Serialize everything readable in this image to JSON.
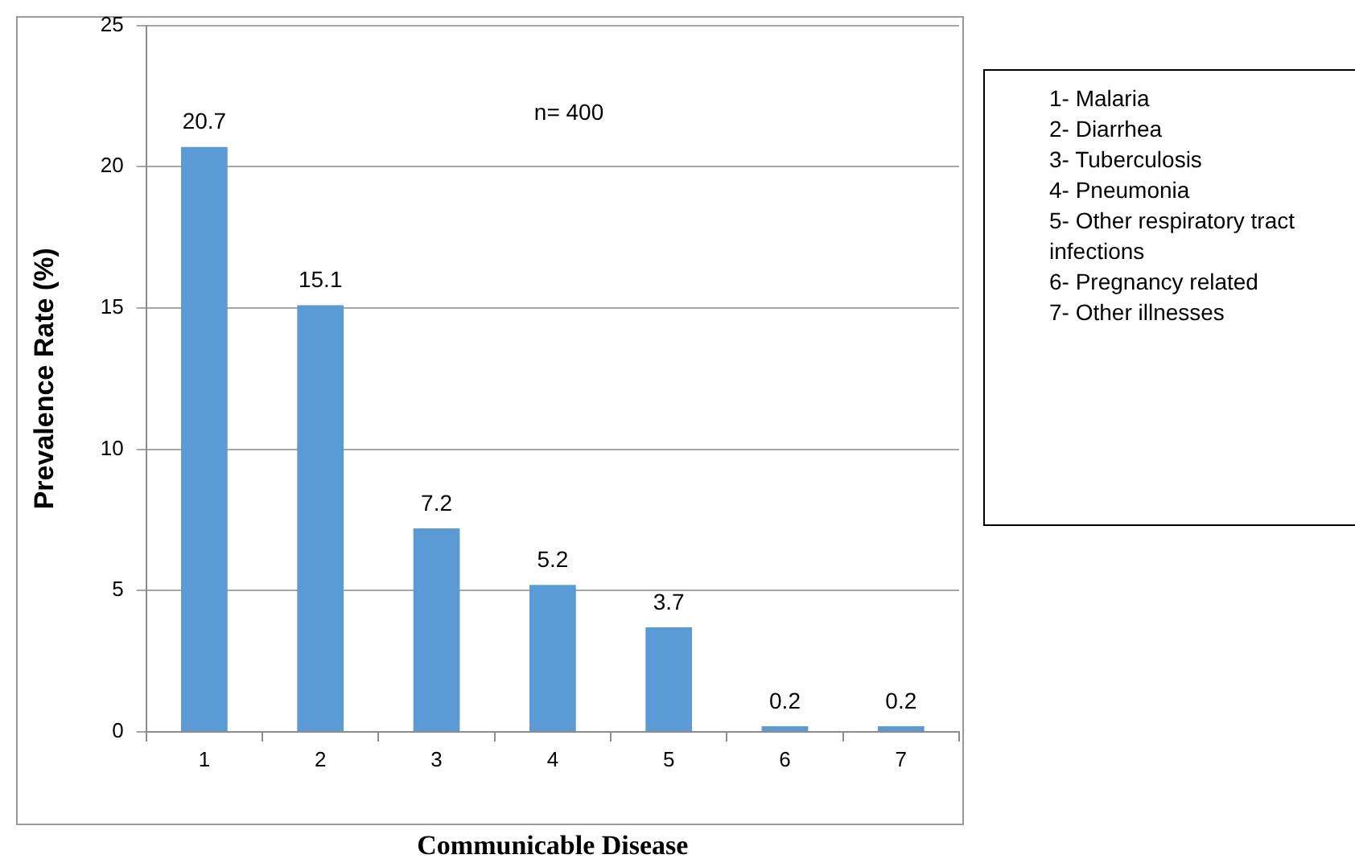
{
  "chart_data": {
    "type": "bar",
    "xlabel": "Communicable Disease",
    "ylabel": "Prevalence Rate (%)",
    "categories": [
      "1",
      "2",
      "3",
      "4",
      "5",
      "6",
      "7"
    ],
    "values": [
      20.7,
      15.1,
      7.2,
      5.2,
      3.7,
      0.2,
      0.2
    ],
    "color": "#5b9bd5",
    "ylim": [
      0,
      25
    ],
    "yticks": [
      0,
      5,
      10,
      15,
      20,
      25
    ],
    "grid": "y",
    "legend": false,
    "data_labels": true,
    "annotations": [
      "n= 400",
      "1- Malaria",
      "2- Diarrhea",
      "3- Tuberculosis",
      "4- Pneumonia",
      "5- Other respiratory tract infections",
      "6- Pregnancy related",
      "7- Other illnesses"
    ]
  }
}
